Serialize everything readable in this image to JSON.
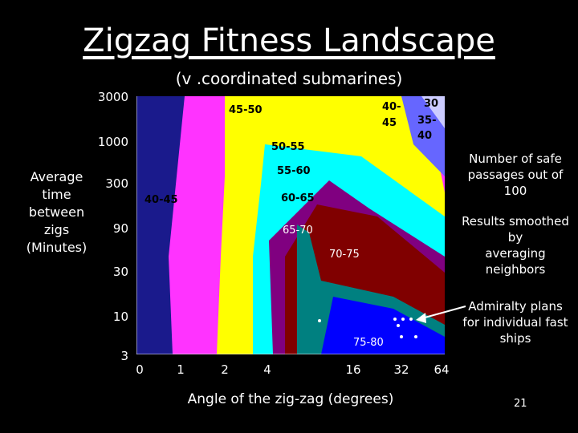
{
  "slide": {
    "title": "Zigzag Fitness Landscape",
    "subtitle": "(v .coordinated submarines)",
    "y_axis_label_lines": [
      "Average time",
      "between zigs",
      "(Minutes)"
    ],
    "x_axis_label": "Angle of the zig-zag (degrees)",
    "y_ticks": [
      "3000",
      "1000",
      "300",
      "90",
      "30",
      "10",
      "3"
    ],
    "x_ticks": [
      "0",
      "1",
      "2",
      "4",
      "16",
      "32",
      "64"
    ],
    "band_labels": {
      "b4550": "45-50",
      "b5055": "50-55",
      "b5560": "55-60",
      "b6065": "60-65",
      "b6570": "65-70",
      "b7075": "70-75",
      "b7580": "75-80",
      "b4045_left": "40-45",
      "b4045_top_line1": "40-",
      "b4045_top_line2": "45",
      "b3540_line1": "30",
      "b3540_line2": "35-",
      "b3540_line3": "40"
    },
    "notes": {
      "safe_line1": "Number of safe",
      "safe_line2": "passages out of 100",
      "smooth_line1": "Results smoothed by",
      "smooth_line2": "averaging neighbors",
      "admiralty_line1": "Admiralty plans",
      "admiralty_line2": "for individual fast",
      "admiralty_line3": "ships"
    },
    "page_number": "21",
    "colors": {
      "40-45": "#1a1a8c",
      "45-50": "#ff33ff",
      "50-55": "#ffff00",
      "55-60": "#00ffff",
      "60-65": "#800080",
      "65-70": "#800000",
      "70-75": "#008080",
      "75-80": "#0000ff",
      "35-40": "#6666ff",
      "30-35": "#ccccff"
    }
  }
}
